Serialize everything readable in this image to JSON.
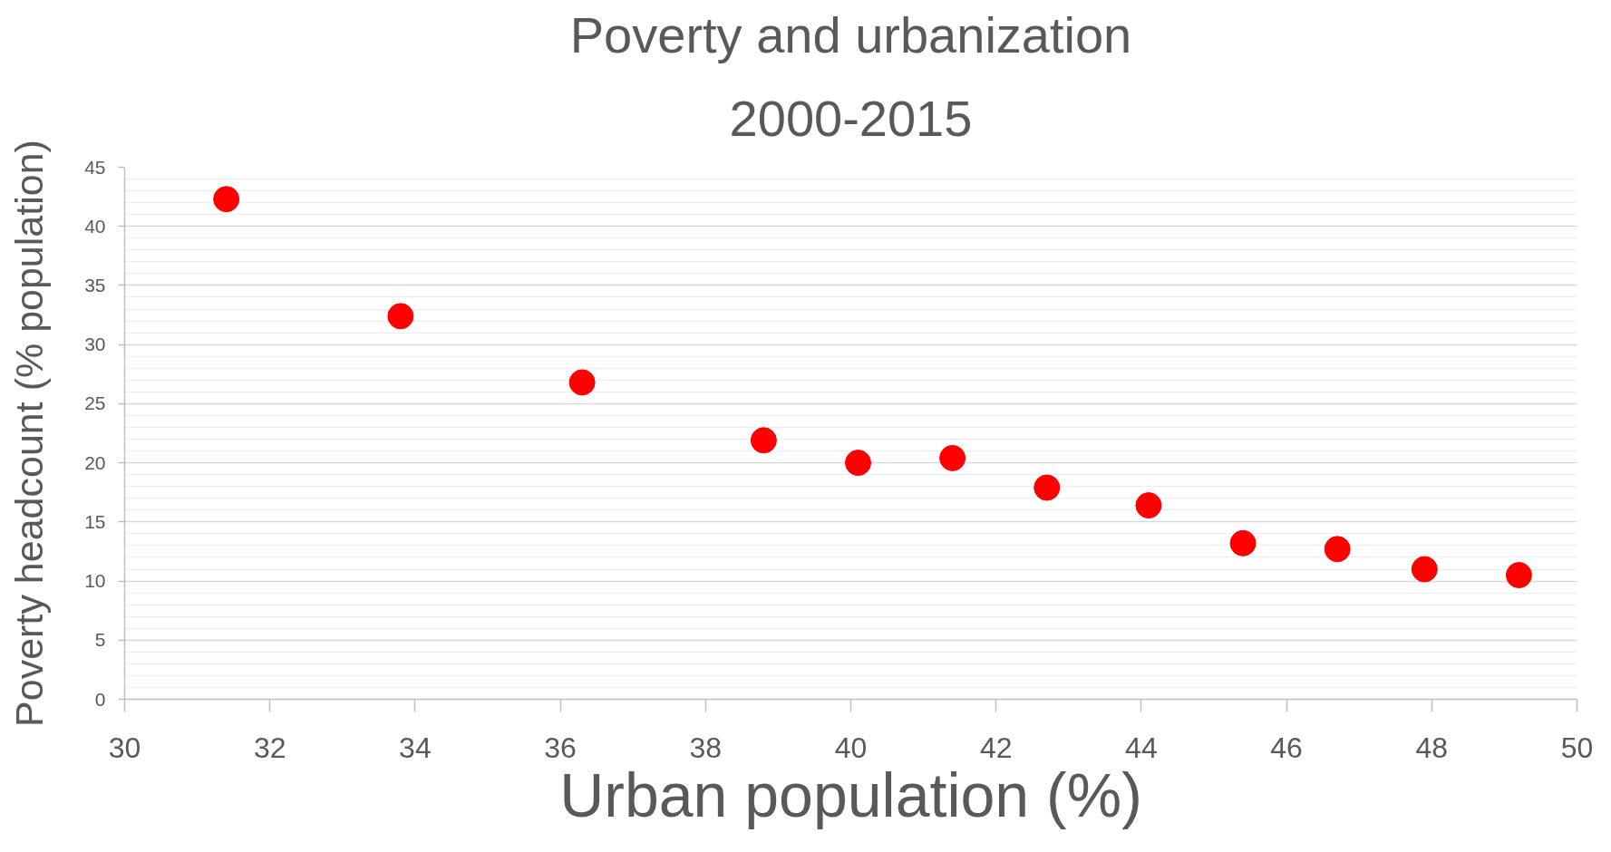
{
  "chart_data": {
    "type": "scatter",
    "title": "Poverty and urbanization",
    "subtitle": "2000-2015",
    "xlabel": "Urban population (%)",
    "ylabel": "Poverty headcount (% population)",
    "x": [
      31.4,
      33.8,
      36.3,
      38.8,
      40.1,
      41.4,
      42.7,
      44.1,
      45.4,
      46.7,
      47.9,
      49.2
    ],
    "series": [
      {
        "color": "#ff0000",
        "values": [
          42.3,
          32.4,
          26.8,
          21.9,
          20.0,
          20.4,
          17.9,
          16.4,
          13.2,
          12.7,
          11.0,
          10.5
        ]
      }
    ],
    "xlim": [
      30,
      50
    ],
    "ylim": [
      0,
      45
    ],
    "xticks": [
      30,
      32,
      34,
      36,
      38,
      40,
      42,
      44,
      46,
      48,
      50
    ],
    "yticks": [
      0,
      5,
      10,
      15,
      20,
      25,
      30,
      35,
      40,
      45
    ],
    "grid": "y",
    "marker": "circle"
  }
}
